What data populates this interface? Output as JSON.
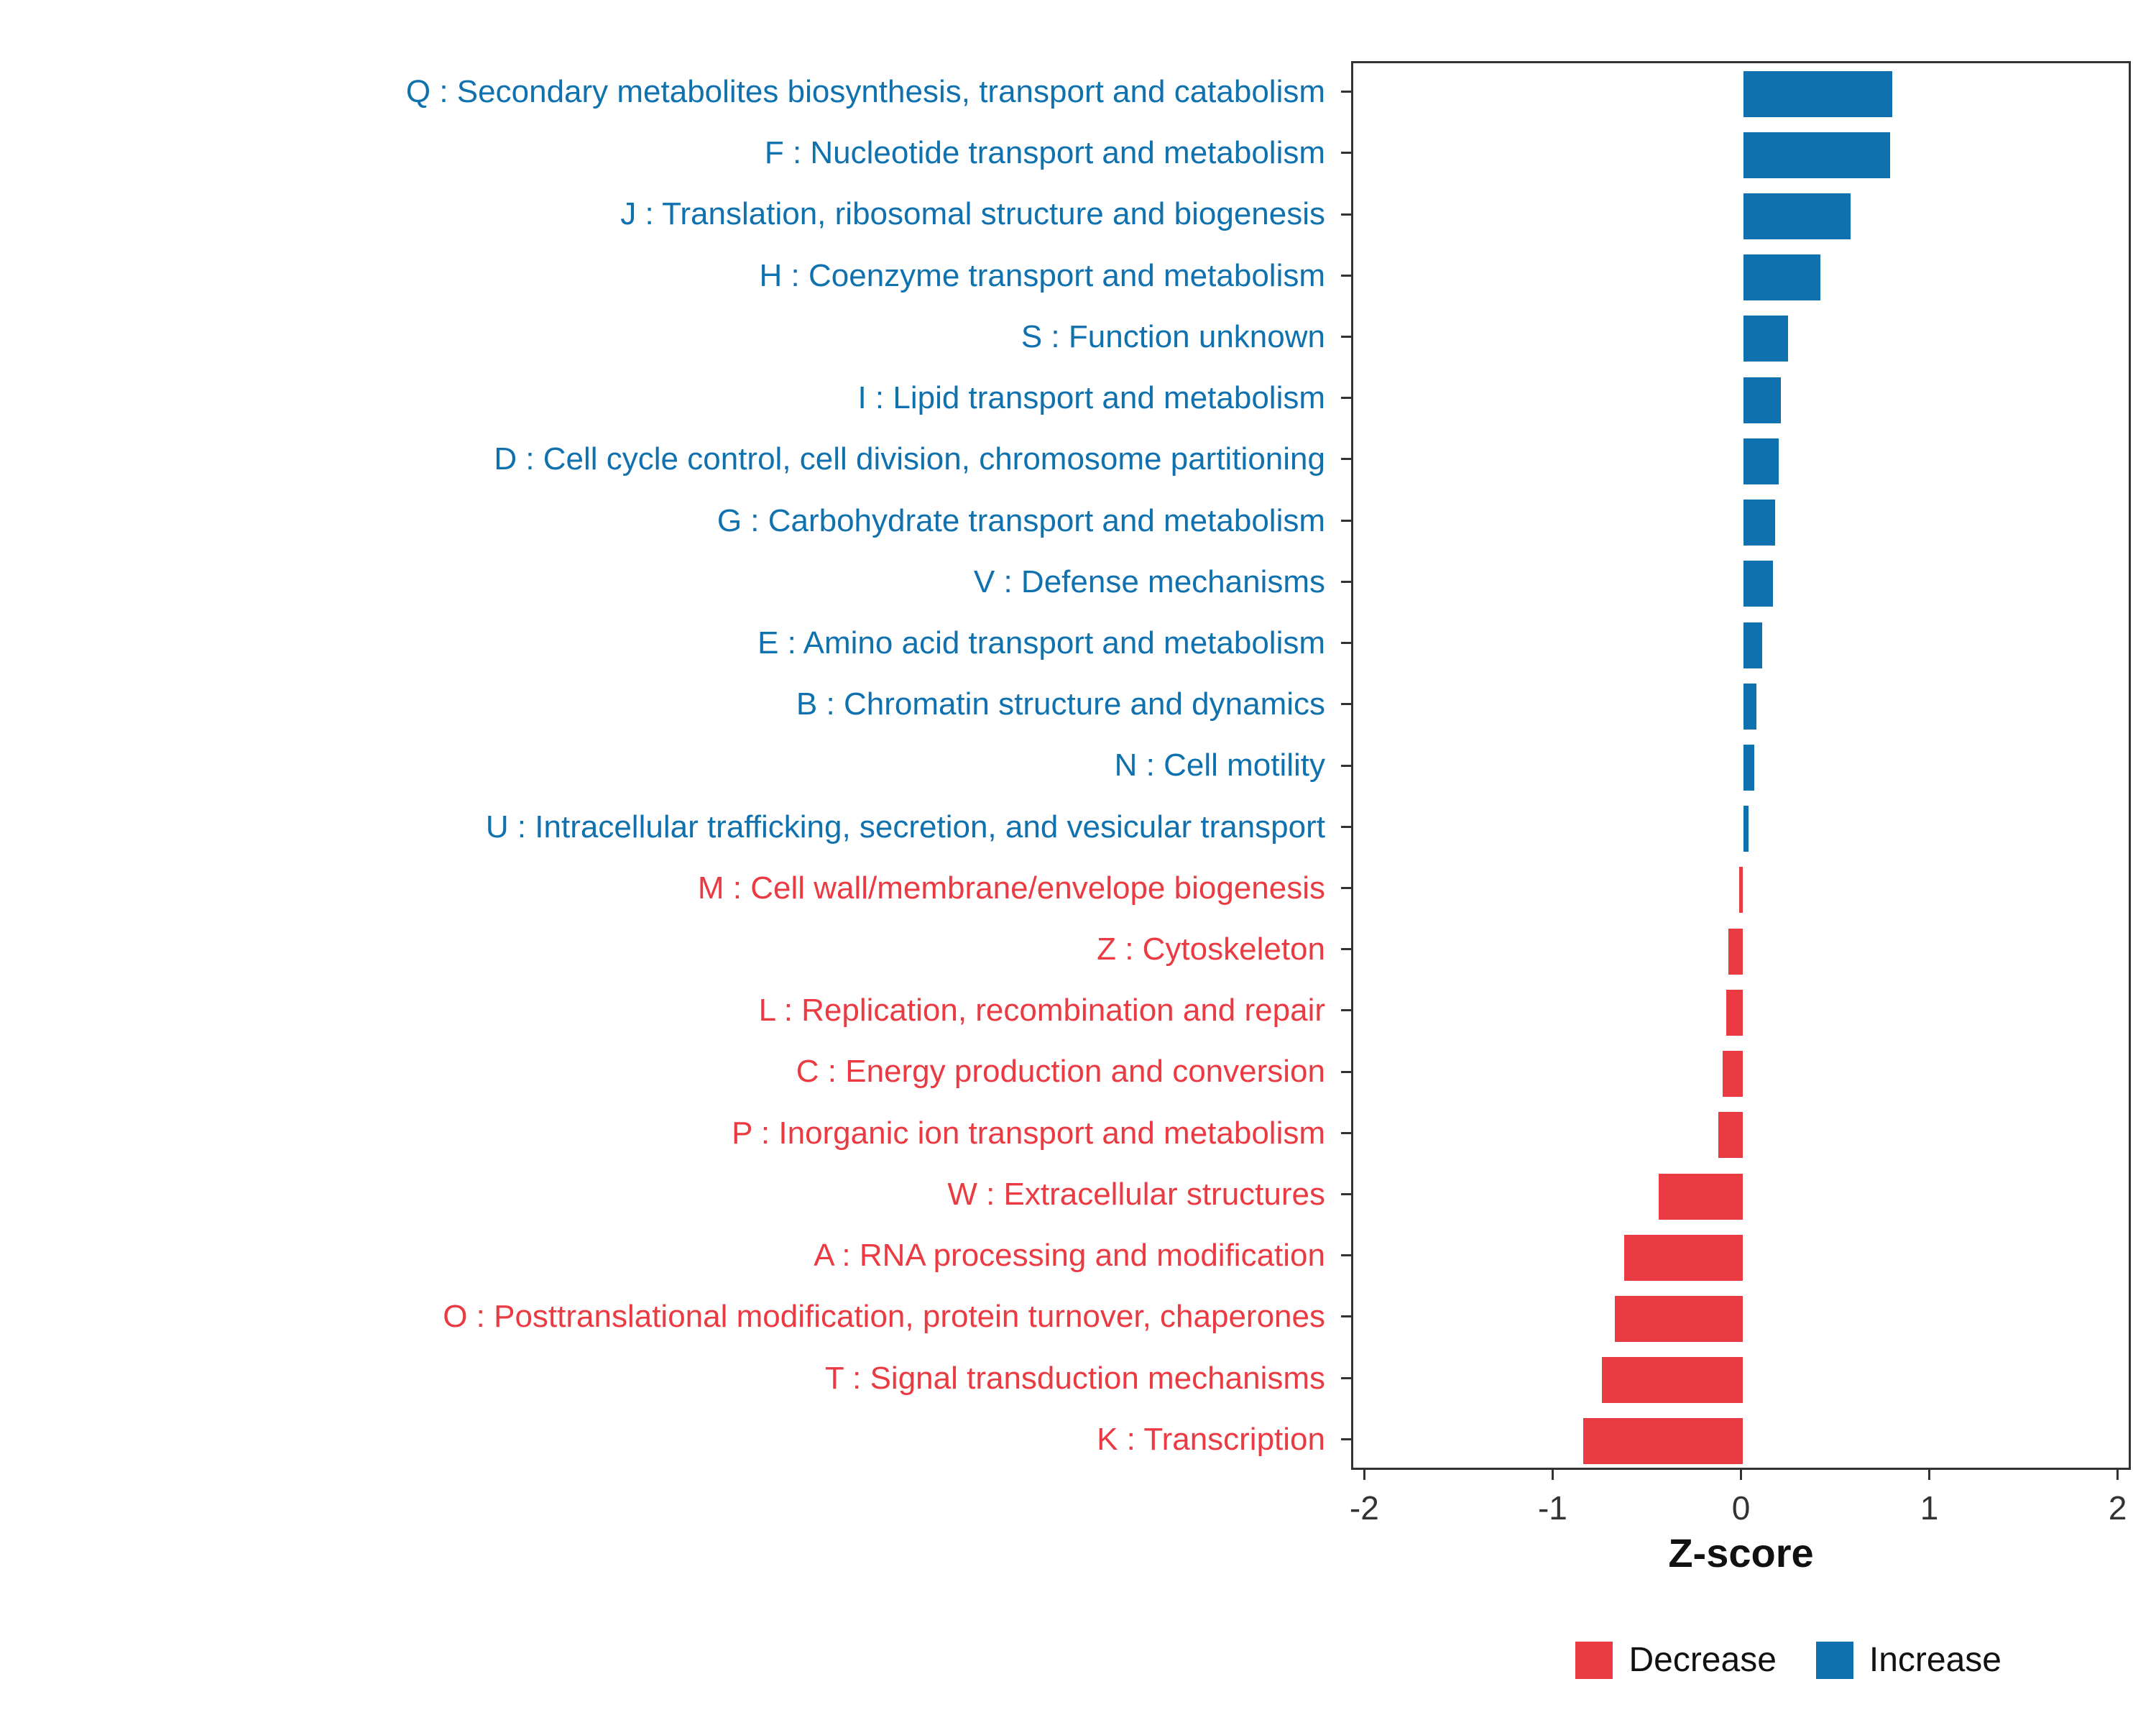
{
  "chart_data": {
    "type": "bar",
    "orientation": "horizontal",
    "title": "",
    "xlabel": "Z-score",
    "ylabel": "",
    "x_ticks": [
      -2,
      -1,
      0,
      1,
      2
    ],
    "xlim": [
      -2.07,
      2.07
    ],
    "grid": false,
    "legend_position": "bottom-right",
    "categories": [
      "Q : Secondary metabolites biosynthesis, transport and catabolism",
      "F : Nucleotide transport and metabolism",
      "J : Translation, ribosomal structure and biogenesis",
      "H : Coenzyme transport and metabolism",
      "S : Function unknown",
      "I : Lipid transport and metabolism",
      "D : Cell cycle control, cell division, chromosome partitioning",
      "G : Carbohydrate transport and metabolism",
      "V : Defense mechanisms",
      "E : Amino acid transport and metabolism",
      "B : Chromatin structure and dynamics",
      "N : Cell motility",
      "U : Intracellular trafficking, secretion, and vesicular transport",
      "M : Cell wall/membrane/envelope biogenesis",
      "Z : Cytoskeleton",
      "L : Replication, recombination and repair",
      "C : Energy production and conversion",
      "P : Inorganic ion transport and metabolism",
      "W : Extracellular structures",
      "A : RNA processing and modification",
      "O : Posttranslational modification, protein turnover, chaperones",
      "T : Signal transduction mechanisms",
      "K : Transcription"
    ],
    "values": [
      0.79,
      0.78,
      0.57,
      0.41,
      0.24,
      0.2,
      0.19,
      0.17,
      0.16,
      0.1,
      0.07,
      0.06,
      0.03,
      -0.02,
      -0.08,
      -0.09,
      -0.11,
      -0.13,
      -0.45,
      -0.63,
      -0.68,
      -0.75,
      -0.85
    ],
    "groups": [
      "increase",
      "increase",
      "increase",
      "increase",
      "increase",
      "increase",
      "increase",
      "increase",
      "increase",
      "increase",
      "increase",
      "increase",
      "increase",
      "decrease",
      "decrease",
      "decrease",
      "decrease",
      "decrease",
      "decrease",
      "decrease",
      "decrease",
      "decrease",
      "decrease"
    ],
    "colors": {
      "increase": "#1071AF",
      "decrease": "#EA3B43"
    }
  },
  "legend": {
    "decrease": "Decrease",
    "increase": "Increase"
  }
}
